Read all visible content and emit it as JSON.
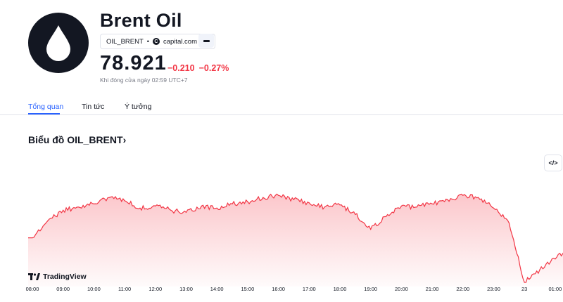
{
  "header": {
    "title": "Brent Oil",
    "logo_icon": "oil-drop-icon",
    "symbol": "OIL_BRENT",
    "separator": "•",
    "source": "capital.com",
    "source_icon_letter": "C",
    "price": "78.921",
    "change_abs": "−0.210",
    "change_pct": "−0.27%",
    "market_status": "Khi đóng cửa ngày 02:59 UTC+7",
    "change_color": "#f23645"
  },
  "tabs": [
    {
      "label": "Tổng quan",
      "active": true
    },
    {
      "label": "Tin tức",
      "active": false
    },
    {
      "label": "Ý tưởng",
      "active": false
    }
  ],
  "section": {
    "title": "Biểu đồ OIL_BRENT",
    "title_arrow": "›"
  },
  "embed_button": "</>",
  "brand": "TradingView",
  "chart_data": {
    "type": "area",
    "line_color": "#f23645",
    "x_tick_labels": [
      "08:00",
      "09:00",
      "10:00",
      "11:00",
      "12:00",
      "13:00",
      "14:00",
      "15:00",
      "16:00",
      "17:00",
      "18:00",
      "19:00",
      "20:00",
      "21:00",
      "22:00",
      "23:00",
      "23",
      "01:00"
    ],
    "x": [
      0,
      0.5,
      1,
      1.5,
      2,
      2.5,
      3,
      3.5,
      4,
      4.5,
      5,
      5.5,
      6,
      6.5,
      7,
      7.5,
      8,
      8.5,
      9,
      9.5,
      10,
      10.5,
      11,
      11.5,
      12,
      12.5,
      13,
      13.5,
      14,
      14.5,
      15,
      15.5,
      16,
      16.5,
      17,
      17.5,
      18,
      18.5,
      19
    ],
    "y": [
      79.02,
      79.1,
      79.15,
      79.165,
      79.18,
      79.21,
      79.195,
      79.16,
      79.17,
      79.15,
      79.14,
      79.17,
      79.16,
      79.18,
      79.19,
      79.21,
      79.22,
      79.2,
      79.185,
      79.165,
      79.175,
      79.13,
      79.06,
      79.12,
      79.17,
      79.165,
      79.18,
      79.2,
      79.22,
      79.21,
      79.16,
      79.09,
      78.81,
      78.87,
      78.92,
      78.98,
      78.95,
      78.99,
      78.95
    ],
    "ylim": [
      78.8,
      79.33
    ],
    "grid": false
  }
}
